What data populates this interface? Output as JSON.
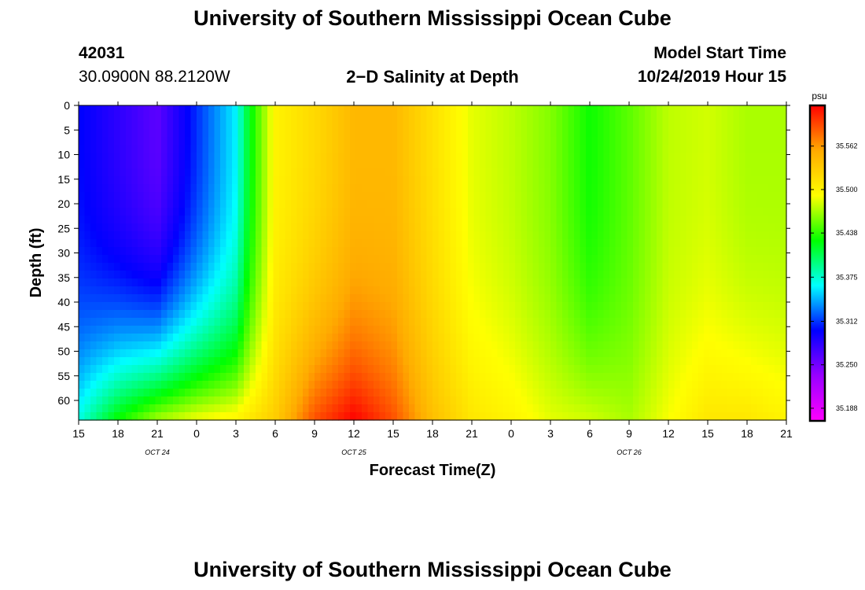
{
  "header": {
    "title": "University of Southern Mississippi Ocean Cube",
    "station_id": "42031",
    "coords": "30.0900N 88.2120W",
    "chart_title": "2−D Salinity at Depth",
    "start_label": "Model Start Time",
    "start_value": "10/24/2019 Hour 15"
  },
  "footer": {
    "title": "University of Southern Mississippi Ocean Cube"
  },
  "chart_data": {
    "type": "heatmap",
    "title": "2−D Salinity at Depth",
    "xlabel": "Forecast Time(Z)",
    "ylabel": "Depth (ft)",
    "x_tick_labels": [
      "15",
      "18",
      "21",
      "0",
      "3",
      "6",
      "9",
      "12",
      "15",
      "18",
      "21",
      "0",
      "3",
      "6",
      "9",
      "12",
      "15",
      "18",
      "21"
    ],
    "x_date_labels": [
      {
        "text": "OCT 24",
        "tick_index": 2
      },
      {
        "text": "OCT 25",
        "tick_index": 7
      },
      {
        "text": "OCT 26",
        "tick_index": 14
      }
    ],
    "y_ticks": [
      0,
      5,
      10,
      15,
      20,
      25,
      30,
      35,
      40,
      45,
      50,
      55,
      60
    ],
    "ylim": [
      0,
      64
    ],
    "y_inverted": true,
    "x_range_hours": [
      0,
      54
    ],
    "colorbar": {
      "unit": "psu",
      "range": [
        35.17,
        35.62
      ],
      "ticks": [
        "35.188",
        "35.250",
        "35.312",
        "35.375",
        "35.438",
        "35.500",
        "35.562"
      ],
      "colors": [
        "#ff00ff",
        "#9900ff",
        "#0000ff",
        "#00ffff",
        "#00ff00",
        "#ffff00",
        "#ffaa00",
        "#ff0000"
      ]
    },
    "surface_series": [
      {
        "hour": 0,
        "salinity": 35.3
      },
      {
        "hour": 3,
        "salinity": 35.28
      },
      {
        "hour": 6,
        "salinity": 35.26
      },
      {
        "hour": 9,
        "salinity": 35.31
      },
      {
        "hour": 12,
        "salinity": 35.36
      },
      {
        "hour": 13,
        "salinity": 35.42
      },
      {
        "hour": 15,
        "salinity": 35.5
      },
      {
        "hour": 18,
        "salinity": 35.52
      },
      {
        "hour": 21,
        "salinity": 35.545
      },
      {
        "hour": 24,
        "salinity": 35.545
      },
      {
        "hour": 27,
        "salinity": 35.515
      },
      {
        "hour": 30,
        "salinity": 35.485
      },
      {
        "hour": 33,
        "salinity": 35.475
      },
      {
        "hour": 36,
        "salinity": 35.46
      },
      {
        "hour": 39,
        "salinity": 35.43
      },
      {
        "hour": 42,
        "salinity": 35.45
      },
      {
        "hour": 45,
        "salinity": 35.475
      },
      {
        "hour": 48,
        "salinity": 35.48
      },
      {
        "hour": 51,
        "salinity": 35.47
      },
      {
        "hour": 54,
        "salinity": 35.47
      }
    ],
    "bottom_series": [
      {
        "hour": 0,
        "salinity": 35.37
      },
      {
        "hour": 3,
        "salinity": 35.43
      },
      {
        "hour": 6,
        "salinity": 35.47
      },
      {
        "hour": 9,
        "salinity": 35.49
      },
      {
        "hour": 12,
        "salinity": 35.5
      },
      {
        "hour": 15,
        "salinity": 35.53
      },
      {
        "hour": 18,
        "salinity": 35.59
      },
      {
        "hour": 21,
        "salinity": 35.62
      },
      {
        "hour": 24,
        "salinity": 35.59
      },
      {
        "hour": 27,
        "salinity": 35.54
      },
      {
        "hour": 30,
        "salinity": 35.51
      },
      {
        "hour": 33,
        "salinity": 35.5
      },
      {
        "hour": 36,
        "salinity": 35.485
      },
      {
        "hour": 39,
        "salinity": 35.48
      },
      {
        "hour": 42,
        "salinity": 35.47
      },
      {
        "hour": 45,
        "salinity": 35.49
      },
      {
        "hour": 48,
        "salinity": 35.51
      },
      {
        "hour": 51,
        "salinity": 35.51
      },
      {
        "hour": 54,
        "salinity": 35.5
      }
    ]
  }
}
